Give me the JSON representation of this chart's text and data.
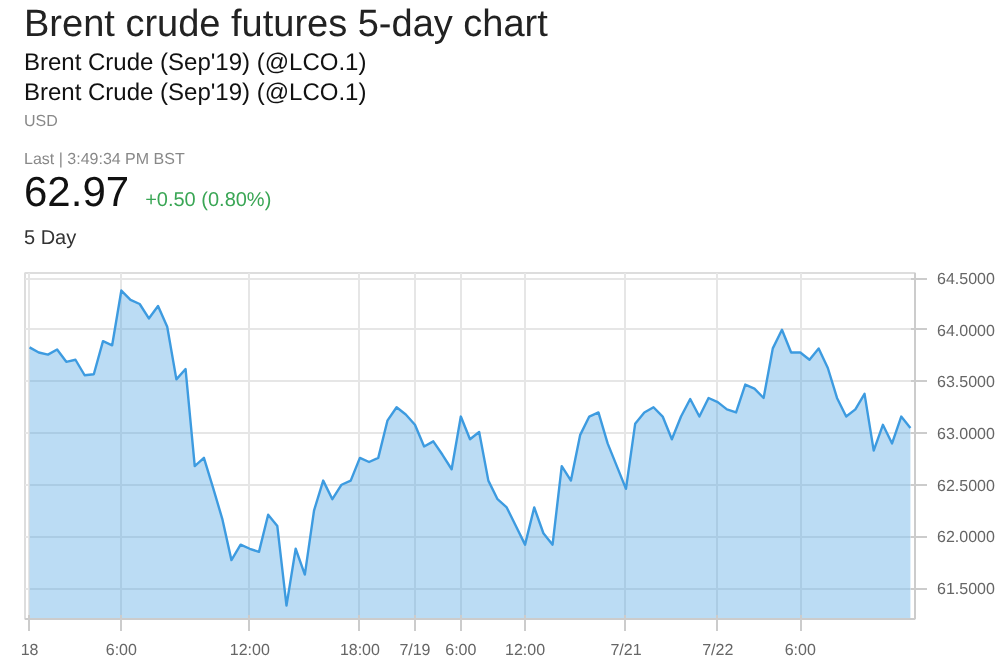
{
  "chart_data": {
    "type": "area",
    "title": "Brent crude futures 5-day chart",
    "subtitle": "Brent Crude (Sep'19) (@LCO.1)",
    "annotations": [
      "Brent Crude (Sep'19) (@LCO.1)",
      "USD",
      "Last | 3:49:34 PM BST",
      "62.97",
      "+0.50 (0.80%)",
      "5 Day"
    ],
    "categories": [
      "18",
      null,
      null,
      null,
      null,
      null,
      null,
      null,
      null,
      null,
      "6:00",
      null,
      null,
      null,
      null,
      null,
      null,
      null,
      null,
      null,
      null,
      null,
      null,
      null,
      "12:00",
      null,
      null,
      null,
      null,
      null,
      null,
      null,
      null,
      null,
      null,
      null,
      "18:00",
      null,
      null,
      null,
      null,
      null,
      "7/19",
      null,
      null,
      null,
      null,
      "6:00",
      null,
      null,
      null,
      null,
      null,
      null,
      "12:00",
      null,
      null,
      null,
      null,
      null,
      null,
      null,
      null,
      null,
      null,
      "7/21",
      null,
      null,
      null,
      null,
      null,
      null,
      null,
      null,
      null,
      "7/22",
      null,
      null,
      null,
      null,
      null,
      null,
      null,
      null,
      "6:00",
      null,
      null,
      null,
      null,
      null,
      null,
      null,
      null,
      null,
      null,
      null,
      null
    ],
    "series": [
      {
        "color": "#3d9be0",
        "values": [
          63.83,
          63.78,
          63.76,
          63.81,
          63.69,
          63.71,
          63.56,
          63.57,
          63.89,
          63.85,
          64.38,
          64.29,
          64.25,
          64.11,
          64.23,
          64.03,
          63.52,
          63.62,
          62.68,
          62.76,
          62.47,
          62.17,
          61.77,
          61.92,
          61.88,
          61.85,
          62.21,
          62.1,
          61.33,
          61.88,
          61.63,
          62.25,
          62.54,
          62.36,
          62.5,
          62.54,
          62.76,
          62.72,
          62.76,
          63.12,
          63.25,
          63.18,
          63.08,
          62.87,
          62.92,
          62.79,
          62.65,
          63.16,
          62.94,
          63.01,
          62.54,
          62.36,
          62.28,
          62.1,
          61.92,
          62.28,
          62.03,
          61.92,
          62.68,
          62.54,
          62.98,
          63.16,
          63.2,
          62.9,
          62.68,
          62.46,
          63.09,
          63.2,
          63.25,
          63.16,
          62.94,
          63.16,
          63.33,
          63.16,
          63.34,
          63.3,
          63.23,
          63.2,
          63.47,
          63.43,
          63.34,
          63.82,
          64.0,
          63.78,
          63.78,
          63.71,
          63.82,
          63.63,
          63.34,
          63.16,
          63.23,
          63.38,
          62.83,
          63.08,
          62.9,
          63.16,
          63.05
        ]
      }
    ],
    "ylim": [
      61.2,
      64.55
    ],
    "yticks": [
      {
        "value": 61.5,
        "label": "61.5000"
      },
      {
        "value": 62.0,
        "label": "62.0000"
      },
      {
        "value": 62.5,
        "label": "62.5000"
      },
      {
        "value": 63.0,
        "label": "63.0000"
      },
      {
        "value": 63.5,
        "label": "63.5000"
      },
      {
        "value": 64.0,
        "label": "64.0000"
      },
      {
        "value": 64.5,
        "label": "64.5000"
      }
    ],
    "grid": true
  }
}
